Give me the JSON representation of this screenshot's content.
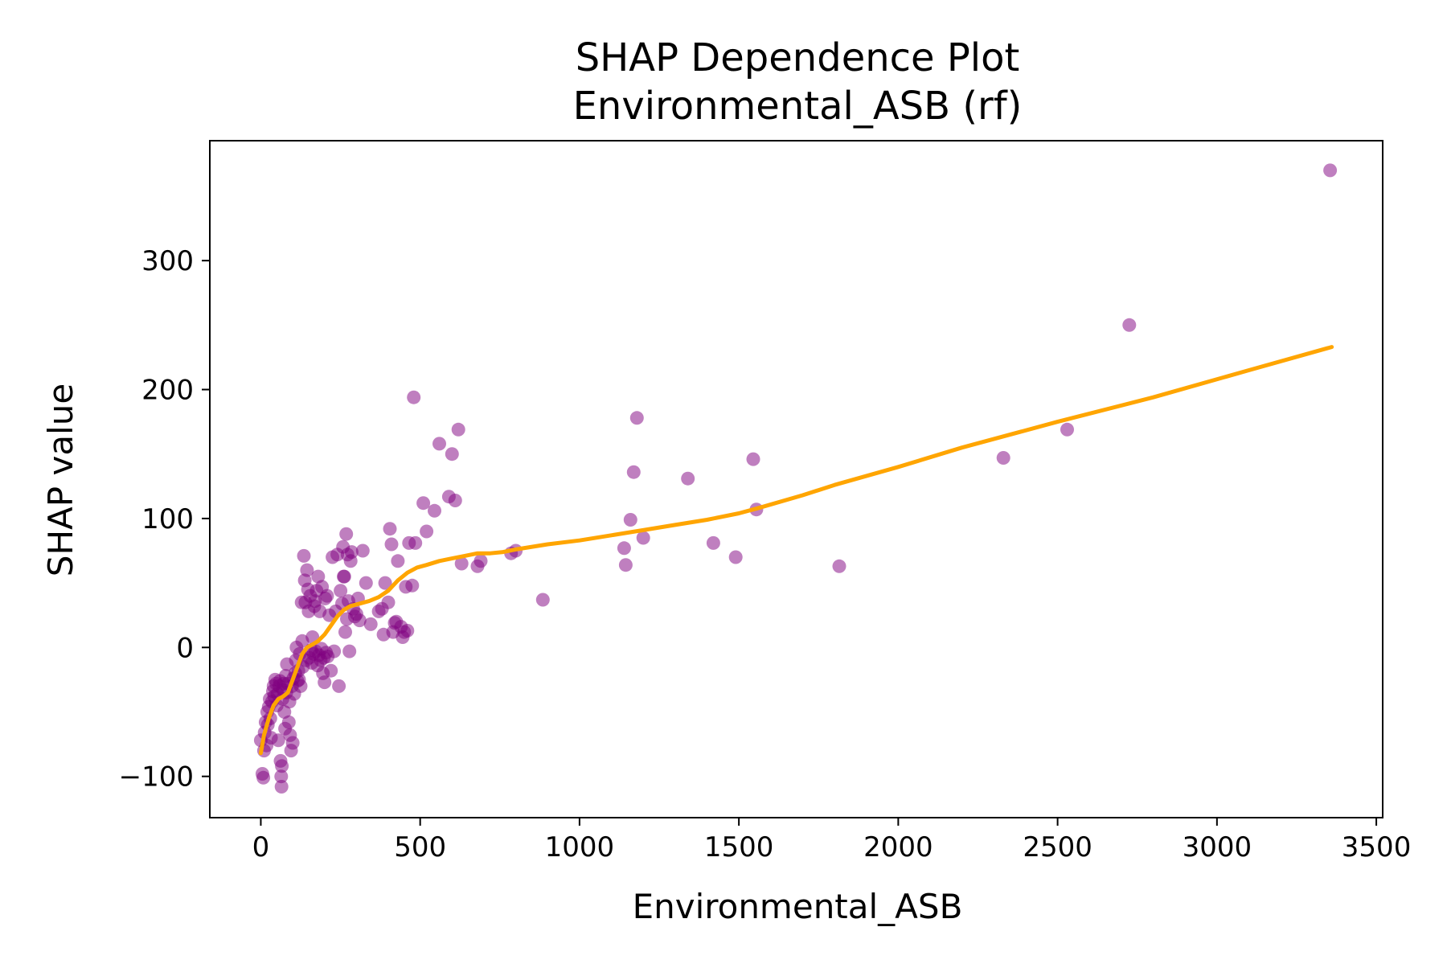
{
  "chart_data": {
    "type": "scatter",
    "title": "SHAP Dependence Plot",
    "subtitle": "Environmental_ASB (rf)",
    "xlabel": "Environmental_ASB",
    "ylabel": "SHAP value",
    "xlim": [
      -160,
      3520
    ],
    "ylim": [
      -132,
      393
    ],
    "xticks": [
      0,
      500,
      1000,
      1500,
      2000,
      2500,
      3000,
      3500
    ],
    "xtick_labels": [
      "0",
      "500",
      "1000",
      "1500",
      "2000",
      "2500",
      "3000",
      "3500"
    ],
    "yticks": [
      -100,
      0,
      100,
      200,
      300
    ],
    "ytick_labels": [
      "−100",
      "0",
      "100",
      "200",
      "300"
    ],
    "grid": false,
    "colors": {
      "points": "#800080",
      "trend": "#ffa500"
    },
    "series": [
      {
        "type": "scatter",
        "points": [
          [
            0,
            -72
          ],
          [
            5,
            -98
          ],
          [
            8,
            -101
          ],
          [
            10,
            -80
          ],
          [
            12,
            -66
          ],
          [
            15,
            -58
          ],
          [
            18,
            -76
          ],
          [
            20,
            -50
          ],
          [
            22,
            -60
          ],
          [
            25,
            -46
          ],
          [
            28,
            -40
          ],
          [
            30,
            -55
          ],
          [
            32,
            -70
          ],
          [
            35,
            -42
          ],
          [
            38,
            -34
          ],
          [
            40,
            -30
          ],
          [
            42,
            -38
          ],
          [
            45,
            -25
          ],
          [
            48,
            -28
          ],
          [
            50,
            -45
          ],
          [
            52,
            -36
          ],
          [
            55,
            -72
          ],
          [
            58,
            -30
          ],
          [
            60,
            -26
          ],
          [
            62,
            -88
          ],
          [
            64,
            -100
          ],
          [
            65,
            -108
          ],
          [
            66,
            -92
          ],
          [
            68,
            -40
          ],
          [
            70,
            -33
          ],
          [
            72,
            -28
          ],
          [
            74,
            -50
          ],
          [
            76,
            -63
          ],
          [
            78,
            -22
          ],
          [
            80,
            -35
          ],
          [
            82,
            -13
          ],
          [
            85,
            -28
          ],
          [
            88,
            -58
          ],
          [
            90,
            -42
          ],
          [
            92,
            -68
          ],
          [
            95,
            -80
          ],
          [
            98,
            -30
          ],
          [
            100,
            -74
          ],
          [
            102,
            -24
          ],
          [
            105,
            -36
          ],
          [
            108,
            -20
          ],
          [
            110,
            -10
          ],
          [
            112,
            0
          ],
          [
            115,
            -26
          ],
          [
            118,
            -18
          ],
          [
            120,
            -25
          ],
          [
            122,
            -5
          ],
          [
            125,
            -30
          ],
          [
            128,
            35
          ],
          [
            130,
            5
          ],
          [
            132,
            -15
          ],
          [
            135,
            71
          ],
          [
            138,
            52
          ],
          [
            140,
            35
          ],
          [
            142,
            -10
          ],
          [
            145,
            60
          ],
          [
            148,
            45
          ],
          [
            150,
            28
          ],
          [
            152,
            -8
          ],
          [
            155,
            40
          ],
          [
            158,
            -2
          ],
          [
            160,
            -12
          ],
          [
            162,
            8
          ],
          [
            165,
            -5
          ],
          [
            168,
            32
          ],
          [
            170,
            36
          ],
          [
            172,
            -3
          ],
          [
            175,
            44
          ],
          [
            178,
            -14
          ],
          [
            180,
            55
          ],
          [
            182,
            -6
          ],
          [
            185,
            28
          ],
          [
            188,
            -10
          ],
          [
            190,
            -1
          ],
          [
            192,
            47
          ],
          [
            195,
            -20
          ],
          [
            198,
            -8
          ],
          [
            200,
            -27
          ],
          [
            202,
            38
          ],
          [
            205,
            -4
          ],
          [
            208,
            40
          ],
          [
            210,
            -7
          ],
          [
            215,
            25
          ],
          [
            220,
            -18
          ],
          [
            225,
            70
          ],
          [
            230,
            -3
          ],
          [
            235,
            28
          ],
          [
            240,
            72
          ],
          [
            245,
            -30
          ],
          [
            250,
            44
          ],
          [
            255,
            34
          ],
          [
            258,
            78
          ],
          [
            260,
            55
          ],
          [
            262,
            55
          ],
          [
            265,
            12
          ],
          [
            268,
            88
          ],
          [
            270,
            22
          ],
          [
            272,
            72
          ],
          [
            275,
            36
          ],
          [
            278,
            -3
          ],
          [
            282,
            67
          ],
          [
            285,
            74
          ],
          [
            290,
            30
          ],
          [
            295,
            24
          ],
          [
            300,
            26
          ],
          [
            305,
            38
          ],
          [
            310,
            21
          ],
          [
            320,
            75
          ],
          [
            330,
            50
          ],
          [
            345,
            18
          ],
          [
            370,
            28
          ],
          [
            380,
            30
          ],
          [
            385,
            10
          ],
          [
            390,
            50
          ],
          [
            400,
            35
          ],
          [
            405,
            92
          ],
          [
            410,
            80
          ],
          [
            415,
            12
          ],
          [
            420,
            19
          ],
          [
            425,
            20
          ],
          [
            430,
            67
          ],
          [
            440,
            16
          ],
          [
            445,
            8
          ],
          [
            450,
            12
          ],
          [
            455,
            47
          ],
          [
            460,
            13
          ],
          [
            465,
            81
          ],
          [
            475,
            48
          ],
          [
            480,
            194
          ],
          [
            485,
            81
          ],
          [
            510,
            112
          ],
          [
            520,
            90
          ],
          [
            545,
            106
          ],
          [
            560,
            158
          ],
          [
            590,
            117
          ],
          [
            600,
            150
          ],
          [
            610,
            114
          ],
          [
            620,
            169
          ],
          [
            630,
            65
          ],
          [
            680,
            63
          ],
          [
            690,
            67
          ],
          [
            785,
            73
          ],
          [
            800,
            75
          ],
          [
            885,
            37
          ],
          [
            1140,
            77
          ],
          [
            1145,
            64
          ],
          [
            1160,
            99
          ],
          [
            1170,
            136
          ],
          [
            1180,
            178
          ],
          [
            1200,
            85
          ],
          [
            1340,
            131
          ],
          [
            1420,
            81
          ],
          [
            1490,
            70
          ],
          [
            1545,
            146
          ],
          [
            1555,
            107
          ],
          [
            1815,
            63
          ],
          [
            2330,
            147
          ],
          [
            2530,
            169
          ],
          [
            2725,
            250
          ],
          [
            3355,
            370
          ]
        ]
      },
      {
        "type": "line",
        "points": [
          [
            0,
            -82
          ],
          [
            10,
            -68
          ],
          [
            25,
            -55
          ],
          [
            40,
            -45
          ],
          [
            55,
            -40
          ],
          [
            70,
            -38
          ],
          [
            85,
            -35
          ],
          [
            100,
            -25
          ],
          [
            115,
            -15
          ],
          [
            130,
            -5
          ],
          [
            145,
            0
          ],
          [
            160,
            2
          ],
          [
            180,
            5
          ],
          [
            200,
            10
          ],
          [
            220,
            17
          ],
          [
            240,
            24
          ],
          [
            260,
            29
          ],
          [
            280,
            32
          ],
          [
            310,
            34
          ],
          [
            340,
            36
          ],
          [
            370,
            39
          ],
          [
            400,
            44
          ],
          [
            430,
            52
          ],
          [
            460,
            58
          ],
          [
            490,
            62
          ],
          [
            520,
            64
          ],
          [
            560,
            67
          ],
          [
            600,
            69
          ],
          [
            640,
            71
          ],
          [
            680,
            73
          ],
          [
            720,
            73
          ],
          [
            760,
            74
          ],
          [
            800,
            76
          ],
          [
            900,
            80
          ],
          [
            1000,
            83
          ],
          [
            1100,
            87
          ],
          [
            1200,
            91
          ],
          [
            1300,
            95
          ],
          [
            1400,
            99
          ],
          [
            1500,
            104
          ],
          [
            1560,
            108
          ],
          [
            1700,
            118
          ],
          [
            1800,
            126
          ],
          [
            2000,
            140
          ],
          [
            2200,
            155
          ],
          [
            2500,
            175
          ],
          [
            2800,
            194
          ],
          [
            3100,
            215
          ],
          [
            3360,
            233
          ]
        ]
      }
    ]
  }
}
